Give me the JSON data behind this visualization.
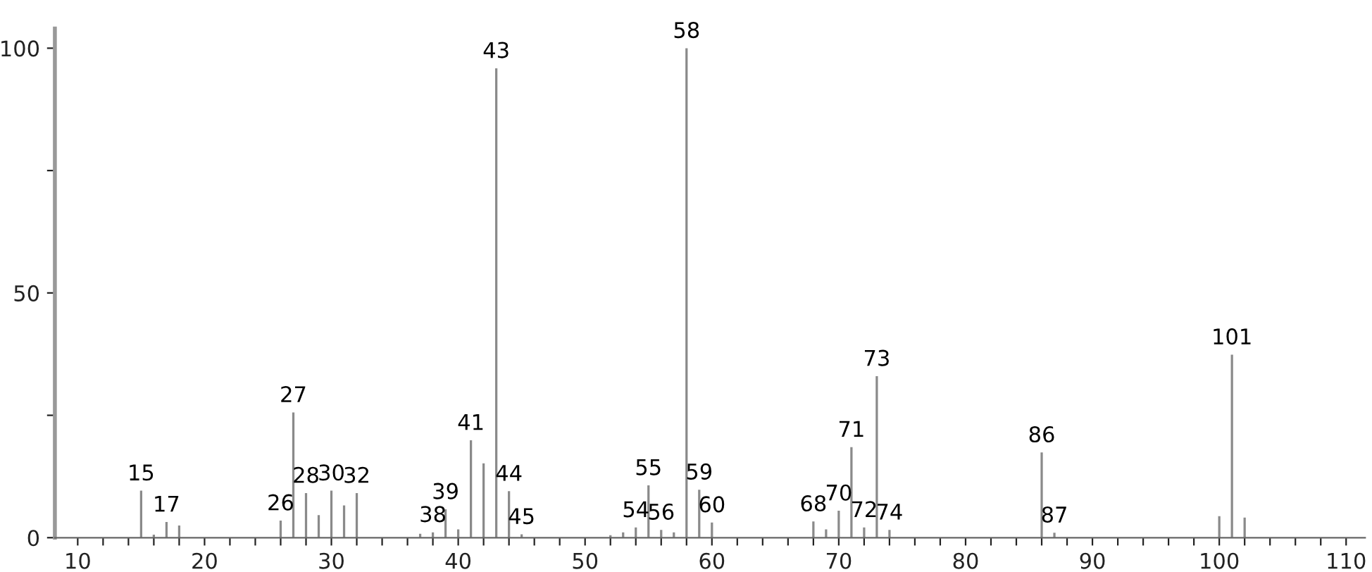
{
  "chart_data": {
    "type": "bar",
    "x": [
      15,
      16,
      17,
      18,
      26,
      27,
      28,
      29,
      30,
      31,
      32,
      37,
      38,
      39,
      40,
      41,
      42,
      43,
      44,
      45,
      52,
      53,
      54,
      55,
      56,
      57,
      58,
      59,
      60,
      68,
      69,
      70,
      71,
      72,
      73,
      74,
      86,
      87,
      100,
      101,
      102
    ],
    "values": [
      9.6,
      0.6,
      3.2,
      2.5,
      3.5,
      25.6,
      9.1,
      4.6,
      9.6,
      6.6,
      9.1,
      0.8,
      1.1,
      5.8,
      1.7,
      19.9,
      15.2,
      95.9,
      9.5,
      0.7,
      0.5,
      1.1,
      2.1,
      10.7,
      1.6,
      1.1,
      100,
      9.8,
      3.1,
      3.3,
      1.7,
      5.5,
      18.5,
      2.1,
      33.0,
      1.6,
      17.4,
      1.0,
      4.4,
      37.4,
      4.1
    ],
    "color": "#8a8a8a",
    "xlim": [
      8.2,
      111.5
    ],
    "ylim": [
      0,
      104
    ],
    "xticks": [
      10,
      {
        "value": 12,
        "label": null
      },
      {
        "value": 14,
        "label": null
      },
      {
        "value": 16,
        "label": null
      },
      {
        "value": 18,
        "label": null
      },
      20,
      {
        "value": 22,
        "label": null
      },
      {
        "value": 24,
        "label": null
      },
      {
        "value": 26,
        "label": null
      },
      {
        "value": 28,
        "label": null
      },
      30,
      {
        "value": 32,
        "label": null
      },
      {
        "value": 34,
        "label": null
      },
      {
        "value": 36,
        "label": null
      },
      {
        "value": 38,
        "label": null
      },
      40,
      {
        "value": 42,
        "label": null
      },
      {
        "value": 44,
        "label": null
      },
      {
        "value": 46,
        "label": null
      },
      {
        "value": 48,
        "label": null
      },
      50,
      {
        "value": 52,
        "label": null
      },
      {
        "value": 54,
        "label": null
      },
      {
        "value": 56,
        "label": null
      },
      {
        "value": 58,
        "label": null
      },
      60,
      {
        "value": 62,
        "label": null
      },
      {
        "value": 64,
        "label": null
      },
      {
        "value": 66,
        "label": null
      },
      {
        "value": 68,
        "label": null
      },
      70,
      {
        "value": 72,
        "label": null
      },
      {
        "value": 74,
        "label": null
      },
      {
        "value": 76,
        "label": null
      },
      {
        "value": 78,
        "label": null
      },
      80,
      {
        "value": 82,
        "label": null
      },
      {
        "value": 84,
        "label": null
      },
      {
        "value": 86,
        "label": null
      },
      {
        "value": 88,
        "label": null
      },
      90,
      {
        "value": 92,
        "label": null
      },
      {
        "value": 94,
        "label": null
      },
      {
        "value": 96,
        "label": null
      },
      {
        "value": 98,
        "label": null
      },
      100,
      {
        "value": 102,
        "label": null
      },
      {
        "value": 104,
        "label": null
      },
      {
        "value": 106,
        "label": null
      },
      {
        "value": 108,
        "label": null
      },
      110
    ],
    "yticks": [
      0,
      {
        "value": 25,
        "label": null
      },
      50,
      {
        "value": 75,
        "label": null
      },
      100
    ],
    "grid": false,
    "legend": false,
    "annotations": [
      {
        "text": "15",
        "x": 15,
        "y": 9.6
      },
      {
        "text": "17",
        "x": 17,
        "y": 3.2
      },
      {
        "text": "26",
        "x": 26,
        "y": 3.5
      },
      {
        "text": "27",
        "x": 27,
        "y": 25.6
      },
      {
        "text": "28",
        "x": 28,
        "y": 9.1
      },
      {
        "text": "30",
        "x": 30,
        "y": 9.6
      },
      {
        "text": "32",
        "x": 32,
        "y": 9.1
      },
      {
        "text": "38",
        "x": 38,
        "y": 1.1
      },
      {
        "text": "39",
        "x": 39,
        "y": 5.8
      },
      {
        "text": "41",
        "x": 41,
        "y": 19.9
      },
      {
        "text": "43",
        "x": 43,
        "y": 95.9
      },
      {
        "text": "44",
        "x": 44,
        "y": 9.5
      },
      {
        "text": "45",
        "x": 45,
        "y": 0.7
      },
      {
        "text": "54",
        "x": 54,
        "y": 2.1
      },
      {
        "text": "55",
        "x": 55,
        "y": 10.7
      },
      {
        "text": "56",
        "x": 56,
        "y": 1.6
      },
      {
        "text": "58",
        "x": 58,
        "y": 100
      },
      {
        "text": "59",
        "x": 59,
        "y": 9.8
      },
      {
        "text": "60",
        "x": 60,
        "y": 3.1
      },
      {
        "text": "68",
        "x": 68,
        "y": 3.3
      },
      {
        "text": "70",
        "x": 70,
        "y": 5.5
      },
      {
        "text": "71",
        "x": 71,
        "y": 18.5
      },
      {
        "text": "72",
        "x": 72,
        "y": 2.1
      },
      {
        "text": "73",
        "x": 73,
        "y": 33.0
      },
      {
        "text": "74",
        "x": 74,
        "y": 1.6
      },
      {
        "text": "86",
        "x": 86,
        "y": 17.4
      },
      {
        "text": "87",
        "x": 87,
        "y": 1.0
      },
      {
        "text": "101",
        "x": 101,
        "y": 37.4
      }
    ]
  }
}
